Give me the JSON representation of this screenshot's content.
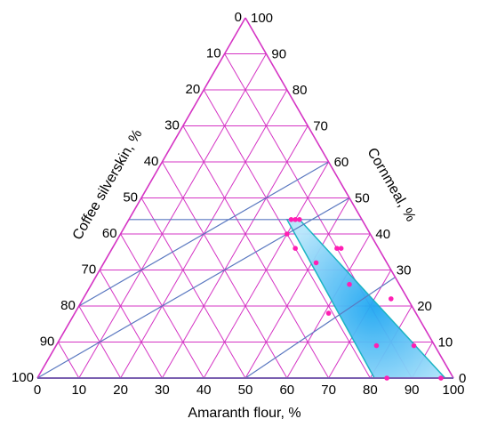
{
  "chart_data": {
    "type": "scatter",
    "subtype": "ternary",
    "axes": {
      "bottom": {
        "label": "Amaranth flour, %",
        "ticks": [
          0,
          10,
          20,
          30,
          40,
          50,
          60,
          70,
          80,
          90,
          100
        ]
      },
      "left": {
        "label": "Coffee silverskin, %",
        "ticks": [
          0,
          10,
          20,
          30,
          40,
          50,
          60,
          70,
          80,
          90,
          100
        ]
      },
      "right": {
        "label": "Cornmeal, %",
        "ticks": [
          0,
          10,
          20,
          30,
          40,
          50,
          60,
          70,
          80,
          90,
          100
        ]
      }
    },
    "grid": true,
    "region": {
      "description_values": "feasible region (amaranth, coffee, cornmeal)",
      "vertices": [
        {
          "amaranth": 38,
          "coffee": 18,
          "cornmeal": 44
        },
        {
          "amaranth": 41,
          "coffee": 15,
          "cornmeal": 44
        },
        {
          "amaranth": 81,
          "coffee": 19,
          "cornmeal": 0
        },
        {
          "amaranth": 98,
          "coffee": 2,
          "cornmeal": 0
        }
      ],
      "color": "#29b6f6"
    },
    "reference_lines": [
      {
        "from": {
          "amaranth": 0,
          "coffee": 100,
          "cornmeal": 0
        },
        "to": {
          "amaranth": 50,
          "coffee": 0,
          "cornmeal": 50
        },
        "note": ""
      },
      {
        "from": {
          "amaranth": 0,
          "coffee": 80,
          "cornmeal": 20
        },
        "to": {
          "amaranth": 40,
          "coffee": 0,
          "cornmeal": 60
        }
      },
      {
        "from": {
          "amaranth": 0,
          "coffee": 56,
          "cornmeal": 44
        },
        "to": {
          "amaranth": 56,
          "coffee": 0,
          "cornmeal": 44
        }
      },
      {
        "from": {
          "amaranth": 50,
          "coffee": 50,
          "cornmeal": 0
        },
        "to": {
          "amaranth": 72,
          "coffee": 0,
          "cornmeal": 28
        }
      }
    ],
    "points": [
      {
        "amaranth": 39,
        "coffee": 17,
        "cornmeal": 44
      },
      {
        "amaranth": 40,
        "coffee": 16,
        "cornmeal": 44
      },
      {
        "amaranth": 41,
        "coffee": 15,
        "cornmeal": 44
      },
      {
        "amaranth": 40,
        "coffee": 20,
        "cornmeal": 40
      },
      {
        "amaranth": 44,
        "coffee": 20,
        "cornmeal": 36
      },
      {
        "amaranth": 54,
        "coffee": 10,
        "cornmeal": 36
      },
      {
        "amaranth": 55,
        "coffee": 9,
        "cornmeal": 36
      },
      {
        "amaranth": 51,
        "coffee": 17,
        "cornmeal": 32
      },
      {
        "amaranth": 62,
        "coffee": 12,
        "cornmeal": 26
      },
      {
        "amaranth": 61,
        "coffee": 21,
        "cornmeal": 18
      },
      {
        "amaranth": 74,
        "coffee": 4,
        "cornmeal": 22
      },
      {
        "amaranth": 77,
        "coffee": 14,
        "cornmeal": 9
      },
      {
        "amaranth": 86,
        "coffee": 5,
        "cornmeal": 9
      },
      {
        "amaranth": 84,
        "coffee": 16,
        "cornmeal": 0
      },
      {
        "amaranth": 97,
        "coffee": 3,
        "cornmeal": 0
      }
    ],
    "colors": {
      "grid": "#d534c4",
      "reference": "#5a78c0",
      "region_edge": "#10b0c0",
      "points": "#ff1fb3"
    }
  }
}
